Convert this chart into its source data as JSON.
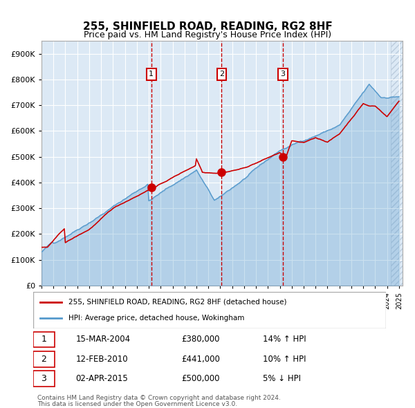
{
  "title": "255, SHINFIELD ROAD, READING, RG2 8HF",
  "subtitle": "Price paid vs. HM Land Registry's House Price Index (HPI)",
  "legend_label_red": "255, SHINFIELD ROAD, READING, RG2 8HF (detached house)",
  "legend_label_blue": "HPI: Average price, detached house, Wokingham",
  "footnote1": "Contains HM Land Registry data © Crown copyright and database right 2024.",
  "footnote2": "This data is licensed under the Open Government Licence v3.0.",
  "sale_points": [
    {
      "num": 1,
      "date": "15-MAR-2004",
      "price": 380000,
      "year": 2004.21,
      "label": "£380,000",
      "pct": "14% ↑ HPI"
    },
    {
      "num": 2,
      "date": "12-FEB-2010",
      "price": 441000,
      "year": 2010.12,
      "label": "£441,000",
      "pct": "10% ↑ HPI"
    },
    {
      "num": 3,
      "date": "02-APR-2015",
      "price": 500000,
      "year": 2015.25,
      "label": "£500,000",
      "pct": "5% ↓ HPI"
    }
  ],
  "ylim": [
    0,
    950000
  ],
  "xlim_start": 1995.0,
  "xlim_end": 2025.3,
  "background_color": "#dce9f5",
  "hatch_color": "#bbccdd",
  "grid_color": "#ffffff",
  "red_color": "#cc0000",
  "blue_color": "#5599cc"
}
